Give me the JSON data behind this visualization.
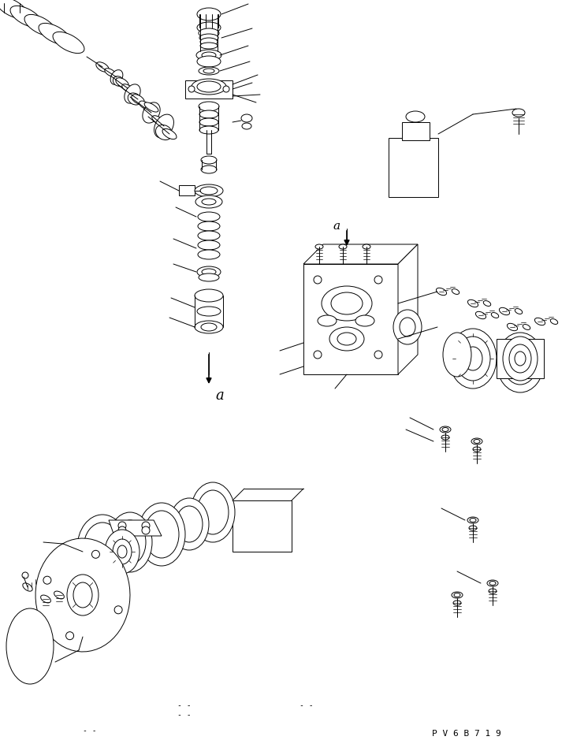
{
  "bg_color": "#ffffff",
  "line_color": "#000000",
  "watermark_text": "P V 6 B 7 1 9",
  "fig_width": 7.27,
  "fig_height": 9.58,
  "dpi": 100
}
